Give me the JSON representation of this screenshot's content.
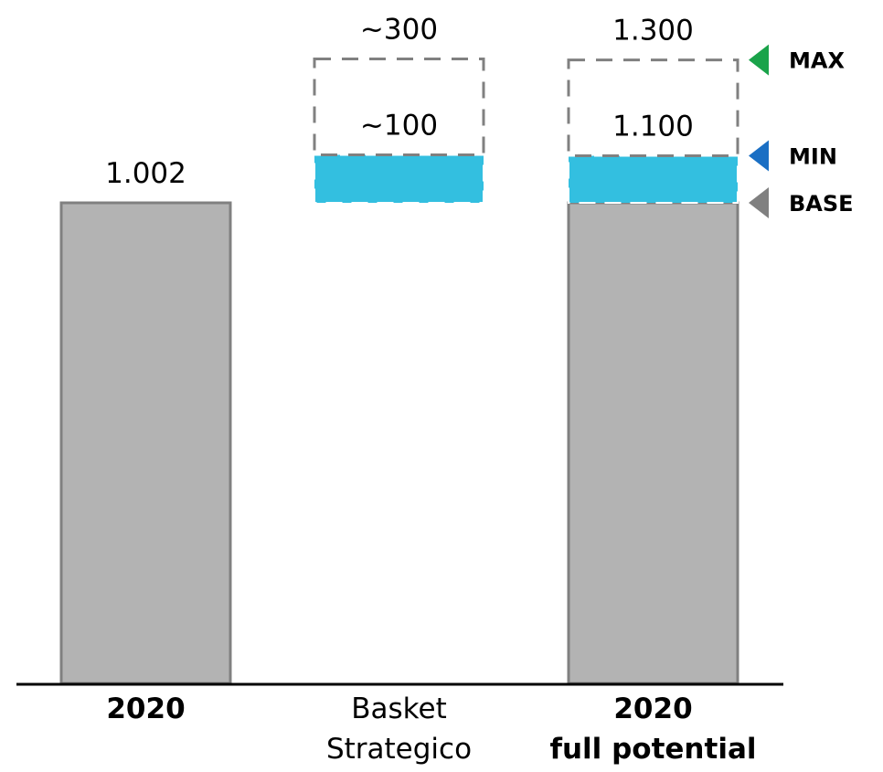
{
  "chart_data": {
    "type": "bar",
    "categories": [
      {
        "lines": [
          "2020"
        ],
        "bold": true
      },
      {
        "lines": [
          "Basket",
          "Strategico"
        ],
        "bold": false
      },
      {
        "lines": [
          "2020",
          "full potential"
        ],
        "bold": true
      }
    ],
    "bars": [
      {
        "category_index": 0,
        "kind": "base",
        "base": 0,
        "value": 1002,
        "label": "1.002"
      },
      {
        "category_index": 1,
        "kind": "increment",
        "base": 1002,
        "value": 100,
        "label": "~100"
      },
      {
        "category_index": 1,
        "kind": "increment-max",
        "base": 1102,
        "value": 200,
        "label": "~300"
      },
      {
        "category_index": 2,
        "kind": "base",
        "base": 0,
        "value": 1002
      },
      {
        "category_index": 2,
        "kind": "increment",
        "base": 1002,
        "value": 98,
        "label": "1.100"
      },
      {
        "category_index": 2,
        "kind": "increment-max",
        "base": 1100,
        "value": 200,
        "label": "1.300"
      }
    ],
    "markers": [
      {
        "label": "MAX",
        "value": 1300,
        "color": "#1aa34a"
      },
      {
        "label": "MIN",
        "value": 1100,
        "color": "#1a6fc4"
      },
      {
        "label": "BASE",
        "value": 1002,
        "color": "#808080"
      }
    ],
    "ylim": [
      0,
      1300
    ],
    "colors": {
      "base_fill": "#b3b3b3",
      "base_stroke": "#808080",
      "increment_fill": "#33bfe0",
      "dashed_stroke": "#808080",
      "axis": "#000000"
    },
    "title": "",
    "xlabel": "",
    "ylabel": "",
    "grid": false,
    "legend": "none"
  }
}
